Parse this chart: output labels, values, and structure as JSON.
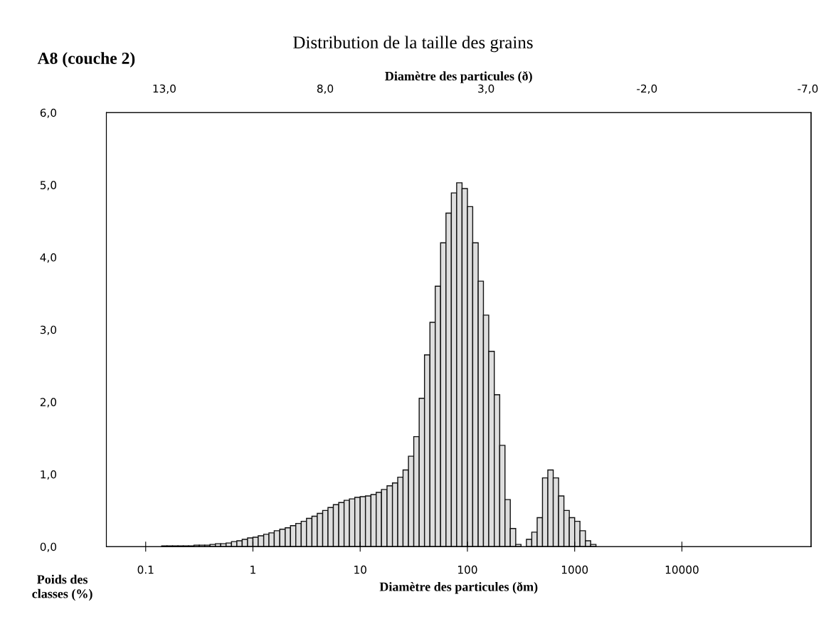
{
  "chart_data": {
    "type": "histogram",
    "title": "Distribution de la taille des grains",
    "subtitle": "A8 (couche 2)",
    "xlabel": "Diamètre des particules (ðm)",
    "x2label": "Diamètre des particules (ð)",
    "ylabel": "Poids des\nclasses (%)",
    "log": "x",
    "color": "#dedede",
    "bins": [
      0.141,
      0.158,
      0.178,
      0.2,
      0.224,
      0.251,
      0.282,
      0.316,
      0.355,
      0.398,
      0.447,
      0.501,
      0.562,
      0.631,
      0.708,
      0.794,
      0.891,
      1,
      1.12,
      1.26,
      1.41,
      1.58,
      1.78,
      2,
      2.24,
      2.51,
      2.82,
      3.16,
      3.55,
      3.98,
      4.47,
      5.01,
      5.62,
      6.31,
      7.08,
      7.94,
      8.91,
      10,
      11.2,
      12.6,
      14.1,
      15.8,
      17.8,
      20,
      22.4,
      25.1,
      28.2,
      31.6,
      35.5,
      39.8,
      44.7,
      50.1,
      56.2,
      63.1,
      70.8,
      79.4,
      89.1,
      100,
      112,
      126,
      141,
      158,
      178,
      200,
      224,
      251,
      282,
      316,
      355,
      398,
      447,
      501,
      562,
      631,
      708,
      794,
      891,
      1000,
      1120,
      1260,
      1410,
      1580
    ],
    "values": [
      0.01,
      0.01,
      0.01,
      0.01,
      0.01,
      0.01,
      0.02,
      0.02,
      0.02,
      0.03,
      0.04,
      0.04,
      0.05,
      0.07,
      0.08,
      0.1,
      0.12,
      0.13,
      0.15,
      0.17,
      0.19,
      0.22,
      0.24,
      0.26,
      0.29,
      0.32,
      0.35,
      0.39,
      0.42,
      0.46,
      0.5,
      0.54,
      0.58,
      0.61,
      0.64,
      0.66,
      0.68,
      0.69,
      0.7,
      0.72,
      0.75,
      0.79,
      0.84,
      0.88,
      0.96,
      1.06,
      1.25,
      1.52,
      2.05,
      2.65,
      3.1,
      3.6,
      4.2,
      4.61,
      4.89,
      5.03,
      4.95,
      4.7,
      4.2,
      3.67,
      3.2,
      2.7,
      2.1,
      1.4,
      0.65,
      0.25,
      0.03,
      0,
      0.1,
      0.2,
      0.4,
      0.95,
      1.06,
      0.95,
      0.7,
      0.5,
      0.4,
      0.35,
      0.22,
      0.08,
      0.03
    ],
    "xlim": [
      0.043,
      160000
    ],
    "xticks": [
      0.1,
      1,
      10,
      100,
      1000,
      10000
    ],
    "x2lim": [
      14.8,
      -7.1
    ],
    "x2ticks": [
      {
        "value": 13,
        "label": "13,0"
      },
      {
        "value": 8,
        "label": "8,0"
      },
      {
        "value": 3,
        "label": "3,0"
      },
      {
        "value": -2,
        "label": "-2,0"
      },
      {
        "value": -7,
        "label": "-7,0"
      }
    ],
    "ylim": [
      0,
      6
    ],
    "yticks": [
      {
        "value": 0,
        "label": "0,0"
      },
      {
        "value": 1,
        "label": "1,0"
      },
      {
        "value": 2,
        "label": "2,0"
      },
      {
        "value": 3,
        "label": "3,0"
      },
      {
        "value": 4,
        "label": "4,0"
      },
      {
        "value": 5,
        "label": "5,0"
      },
      {
        "value": 6,
        "label": "6,0"
      }
    ],
    "grid": false,
    "legend": false
  }
}
